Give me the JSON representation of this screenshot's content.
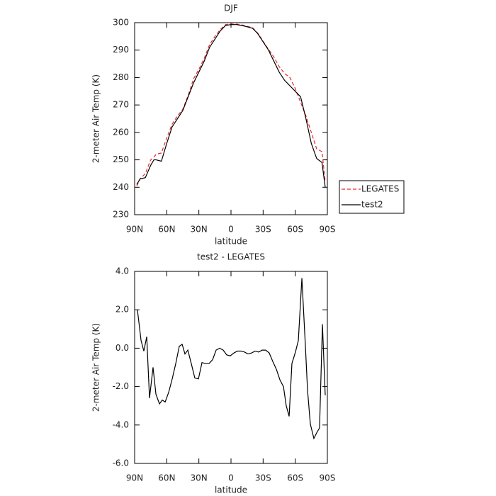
{
  "chart_data": [
    {
      "type": "line",
      "title": "DJF",
      "xlabel": "latitude",
      "ylabel": "2-meter Air Temp (K)",
      "x": [
        88,
        85,
        80,
        75,
        72,
        70,
        65,
        60,
        55,
        50,
        45,
        40,
        35,
        30,
        25,
        20,
        15,
        10,
        5,
        0,
        -5,
        -10,
        -15,
        -20,
        -25,
        -30,
        -35,
        -40,
        -45,
        -50,
        -55,
        -60,
        -65,
        -70,
        -75,
        -80,
        -85,
        -88
      ],
      "series": [
        {
          "name": "LEGATES",
          "color": "#e8262b",
          "dash": true,
          "values": [
            240.5,
            243,
            245,
            250,
            251,
            252,
            252.5,
            258,
            263,
            266,
            268.5,
            273.5,
            279.5,
            283,
            287,
            292,
            295,
            297.5,
            299.3,
            299.5,
            299.5,
            299.2,
            298.7,
            298.2,
            296.2,
            293.2,
            290.3,
            287.5,
            284,
            281.5,
            280,
            276,
            271,
            266,
            260,
            254,
            253,
            242
          ]
        },
        {
          "name": "test2",
          "color": "#000000",
          "dash": false,
          "values": [
            241,
            243,
            243.5,
            248,
            250,
            250,
            249.5,
            256,
            262,
            265,
            268,
            273,
            278,
            282,
            286,
            291,
            294,
            297,
            299,
            299.3,
            299.3,
            299,
            298.5,
            298,
            296,
            293,
            290,
            286,
            282,
            279,
            277,
            275,
            273,
            265,
            256,
            250.5,
            249,
            240
          ]
        }
      ],
      "xlim": [
        90,
        -90
      ],
      "xticks": [
        {
          "value": 90,
          "label": "90N"
        },
        {
          "value": 60,
          "label": "60N"
        },
        {
          "value": 30,
          "label": "30N"
        },
        0,
        {
          "value": -30,
          "label": "30S"
        },
        {
          "value": -60,
          "label": "60S"
        },
        {
          "value": -90,
          "label": "90S"
        }
      ],
      "ylim": [
        230,
        300
      ],
      "yticks": [
        230,
        240,
        250,
        260,
        270,
        280,
        290,
        300
      ],
      "legend": "outside-right"
    },
    {
      "type": "line",
      "title": "test2 - LEGATES",
      "xlabel": "latitude",
      "ylabel": "2-meter Air Temp (K)",
      "x": [
        87.4,
        84.0,
        81.4,
        78.7,
        76.1,
        72.8,
        70.1,
        66.8,
        64.2,
        61.5,
        58.2,
        54.9,
        51.6,
        48.3,
        45.6,
        43.0,
        40.3,
        37.1,
        33.8,
        30.4,
        27.1,
        23.8,
        20.5,
        17.2,
        13.9,
        10.6,
        7.3,
        4.0,
        0.7,
        -2.7,
        -6.0,
        -9.3,
        -12.6,
        -15.9,
        -19.2,
        -22.5,
        -25.8,
        -29.1,
        -32.4,
        -35.7,
        -39.1,
        -42.4,
        -45.7,
        -49.0,
        -51.6,
        -54.3,
        -56.9,
        -60.2,
        -62.9,
        -66.2,
        -69.5,
        -71.5,
        -74.1,
        -77.4,
        -80.1,
        -82.7,
        -85.4,
        -88.0
      ],
      "series": [
        {
          "color": "#000000",
          "values": [
            2.0,
            0.4,
            -0.15,
            0.6,
            -2.6,
            -1.0,
            -2.4,
            -2.9,
            -2.7,
            -2.8,
            -2.3,
            -1.6,
            -0.8,
            0.1,
            0.2,
            -0.3,
            -0.1,
            -0.8,
            -1.55,
            -1.6,
            -0.75,
            -0.8,
            -0.8,
            -0.6,
            -0.1,
            0.0,
            -0.1,
            -0.35,
            -0.4,
            -0.25,
            -0.15,
            -0.15,
            -0.2,
            -0.3,
            -0.25,
            -0.15,
            -0.2,
            -0.1,
            -0.1,
            -0.25,
            -0.7,
            -1.1,
            -1.65,
            -2.0,
            -3.0,
            -3.55,
            -0.8,
            -0.2,
            0.4,
            3.65,
            0.1,
            -2.2,
            -3.95,
            -4.7,
            -4.4,
            -4.15,
            1.25,
            -2.45
          ]
        }
      ],
      "xlim": [
        90,
        -90
      ],
      "xticks": [
        {
          "value": 90,
          "label": "90N"
        },
        {
          "value": 60,
          "label": "60N"
        },
        {
          "value": 30,
          "label": "30N"
        },
        0,
        {
          "value": -30,
          "label": "30S"
        },
        {
          "value": -60,
          "label": "60S"
        },
        {
          "value": -90,
          "label": "90S"
        }
      ],
      "ylim": [
        -6,
        4
      ],
      "yticks": [
        {
          "value": -6,
          "label": "-6.0"
        },
        {
          "value": -4,
          "label": "-4.0"
        },
        {
          "value": -2,
          "label": "-2.0"
        },
        {
          "value": 0,
          "label": "0.0"
        },
        {
          "value": 2,
          "label": "2.0"
        },
        {
          "value": 4,
          "label": "4.0"
        }
      ]
    }
  ]
}
